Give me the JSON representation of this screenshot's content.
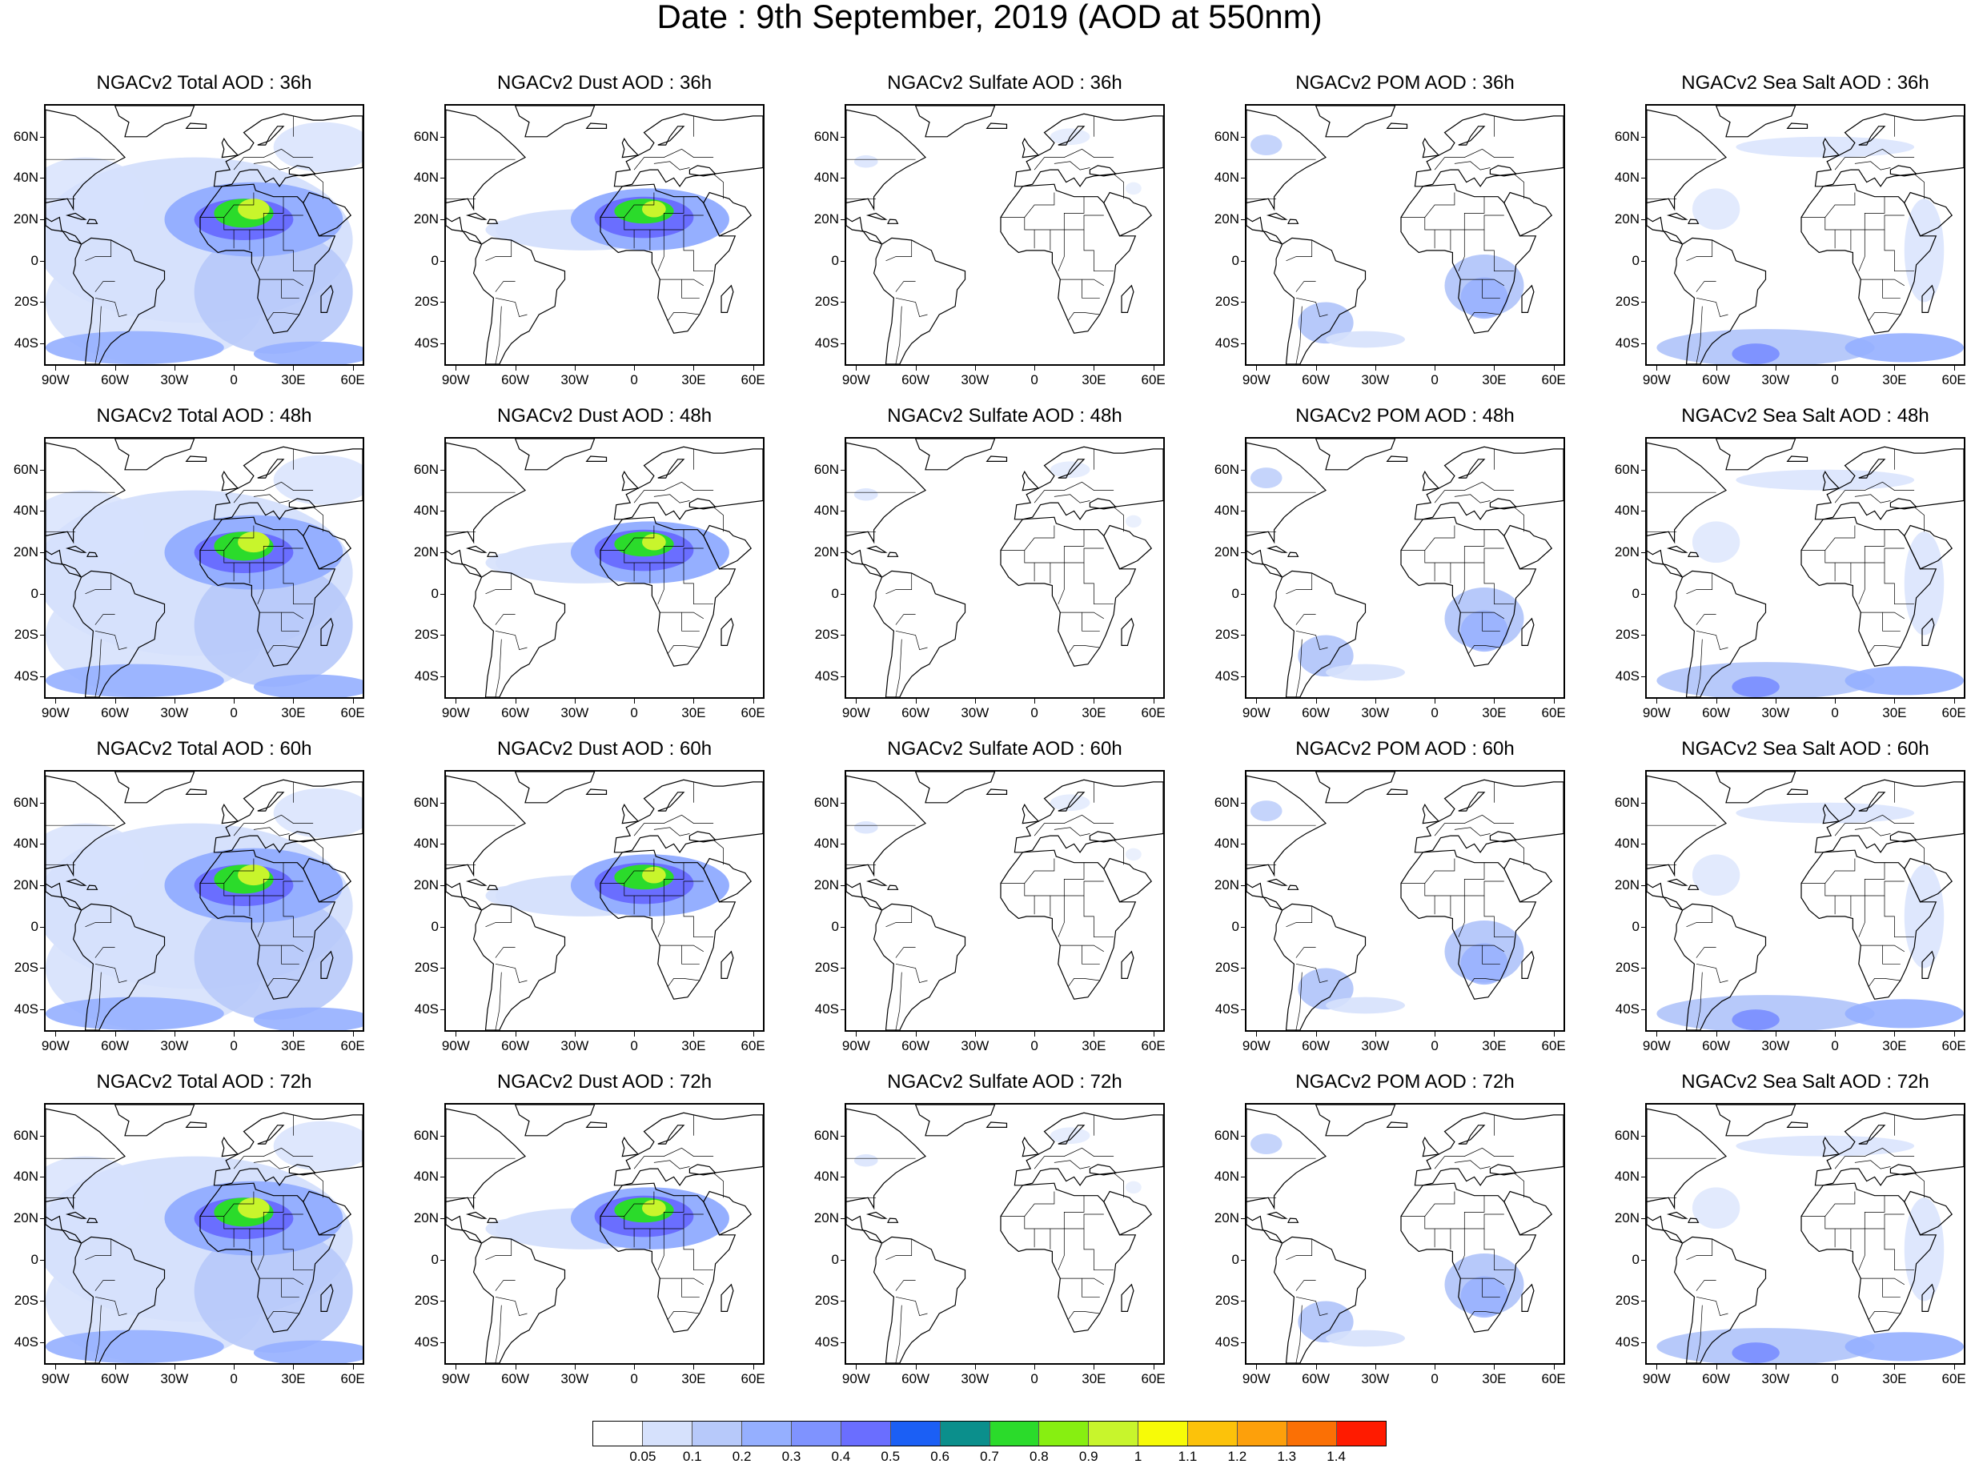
{
  "title": "Date : 9th September, 2019 (AOD at 550nm)",
  "lat_labels": [
    "60N",
    "40N",
    "20N",
    "0",
    "20S",
    "40S"
  ],
  "lon_labels": [
    "90W",
    "60W",
    "30W",
    "0",
    "30E",
    "60E"
  ],
  "colorbar": {
    "colors": [
      "#ffffff",
      "#d6e1fc",
      "#b7c9fa",
      "#95afff",
      "#7f93ff",
      "#6a6eff",
      "#1b5ff5",
      "#0b8f8c",
      "#2bdb2b",
      "#87ef11",
      "#c8f52c",
      "#f7fb07",
      "#fcc20a",
      "#fda00b",
      "#fb7005",
      "#ff1b00"
    ],
    "labels": [
      "0.05",
      "0.1",
      "0.2",
      "0.3",
      "0.4",
      "0.5",
      "0.6",
      "0.7",
      "0.8",
      "0.9",
      "1",
      "1.1",
      "1.2",
      "1.3",
      "1.4"
    ]
  },
  "rows": [
    {
      "panels": [
        {
          "title": "NGACv2 Total AOD : 36h",
          "kind": "total"
        },
        {
          "title": "NGACv2 Dust AOD : 36h",
          "kind": "dust"
        },
        {
          "title": "NGACv2 Sulfate AOD : 36h",
          "kind": "sulfate"
        },
        {
          "title": "NGACv2 POM AOD : 36h",
          "kind": "pom"
        },
        {
          "title": "NGACv2 Sea Salt AOD : 36h",
          "kind": "seasalt"
        }
      ]
    },
    {
      "panels": [
        {
          "title": "NGACv2 Total AOD : 48h",
          "kind": "total"
        },
        {
          "title": "NGACv2 Dust AOD : 48h",
          "kind": "dust"
        },
        {
          "title": "NGACv2 Sulfate AOD : 48h",
          "kind": "sulfate"
        },
        {
          "title": "NGACv2 POM AOD : 48h",
          "kind": "pom"
        },
        {
          "title": "NGACv2 Sea Salt AOD : 48h",
          "kind": "seasalt"
        }
      ]
    },
    {
      "panels": [
        {
          "title": "NGACv2 Total AOD : 60h",
          "kind": "total"
        },
        {
          "title": "NGACv2 Dust AOD : 60h",
          "kind": "dust"
        },
        {
          "title": "NGACv2 Sulfate AOD : 60h",
          "kind": "sulfate"
        },
        {
          "title": "NGACv2 POM AOD : 60h",
          "kind": "pom"
        },
        {
          "title": "NGACv2 Sea Salt AOD : 60h",
          "kind": "seasalt"
        }
      ]
    },
    {
      "panels": [
        {
          "title": "NGACv2 Total AOD : 72h",
          "kind": "total"
        },
        {
          "title": "NGACv2 Dust AOD : 72h",
          "kind": "dust"
        },
        {
          "title": "NGACv2 Sulfate AOD : 72h",
          "kind": "sulfate"
        },
        {
          "title": "NGACv2 POM AOD : 72h",
          "kind": "pom"
        },
        {
          "title": "NGACv2 Sea Salt  AOD : 72h",
          "kind": "seasalt"
        }
      ]
    }
  ]
}
